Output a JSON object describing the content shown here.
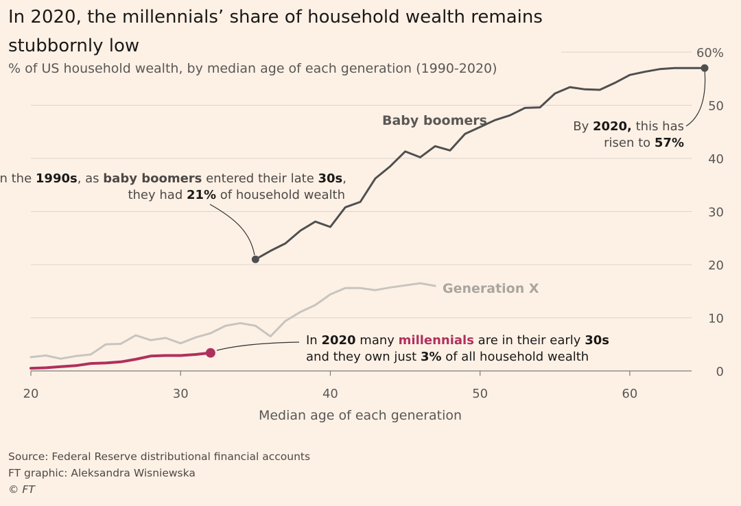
{
  "header": {
    "title": "In 2020, the millennials’ share of household wealth remains stubbornly low",
    "subtitle": "% of US household wealth, by median age of each generation (1990-2020)"
  },
  "chart_data": {
    "type": "line",
    "xlabel": "Median age of each generation",
    "ylabel": "",
    "xlim": [
      20,
      65
    ],
    "ylim": [
      0,
      60
    ],
    "x_ticks": [
      "20",
      "30",
      "40",
      "50",
      "60"
    ],
    "y_ticks": [
      "0",
      "10",
      "20",
      "30",
      "40",
      "50",
      "60%"
    ],
    "grid": "horizontal",
    "series": [
      {
        "name": "Baby boomers",
        "color": "#4f4f4f",
        "x": [
          35,
          36,
          37,
          38,
          39,
          40,
          41,
          42,
          43,
          44,
          45,
          46,
          47,
          48,
          49,
          50,
          51,
          52,
          53,
          54,
          55,
          56,
          57,
          58,
          59,
          60,
          61,
          62,
          63,
          64,
          65
        ],
        "y": [
          21,
          22.6,
          24,
          26.4,
          28.1,
          27.1,
          30.8,
          31.8,
          36.2,
          38.5,
          41.3,
          40.2,
          42.3,
          41.5,
          44.6,
          45.9,
          47.2,
          48.1,
          49.5,
          49.6,
          52.2,
          53.4,
          53,
          52.9,
          54.2,
          55.7,
          56.3,
          56.8,
          57,
          57,
          57
        ]
      },
      {
        "name": "Generation X",
        "color": "#c8c4be",
        "x": [
          20,
          21,
          22,
          23,
          24,
          25,
          26,
          27,
          28,
          29,
          30,
          31,
          32,
          33,
          34,
          35,
          36,
          37,
          38,
          39,
          40,
          41,
          42,
          43,
          44,
          45,
          46,
          47
        ],
        "y": [
          2.6,
          2.9,
          2.3,
          2.8,
          3.1,
          5,
          5.1,
          6.7,
          5.8,
          6.2,
          5.2,
          6.3,
          7.1,
          8.5,
          9,
          8.5,
          6.5,
          9.4,
          11.1,
          12.4,
          14.4,
          15.6,
          15.6,
          15.2,
          15.7,
          16.1,
          16.5,
          16
        ]
      },
      {
        "name": "",
        "color": "#b0305d",
        "x": [
          20,
          21,
          22,
          23,
          24,
          25,
          26,
          27,
          28,
          29,
          30,
          31,
          32
        ],
        "y": [
          0.5,
          0.6,
          0.8,
          1.0,
          1.4,
          1.5,
          1.7,
          2.2,
          2.8,
          2.9,
          2.9,
          3.1,
          3.4
        ]
      }
    ],
    "series_labels": {
      "boomers": "Baby boomers",
      "genx": "Generation X"
    },
    "annotations": {
      "boomers_1990": {
        "p1": "In the ",
        "b1": "1990s",
        "p2": ", as ",
        "b2": "baby boomers",
        "p3": " entered their late ",
        "b3": "30s",
        "p4": ",",
        "q1": "they had ",
        "c1": "21%",
        "q2": " of household wealth"
      },
      "boomers_2020": {
        "p1": "By ",
        "b1": "2020,",
        "p2": " this has",
        "q1": "risen to ",
        "c1": "57%"
      },
      "millennials_2020": {
        "p1": "In ",
        "b1": "2020",
        "p2": " many ",
        "m1": "millennials",
        "p3": " are in their early ",
        "b2": "30s",
        "q1": "and they own just ",
        "c1": "3%",
        "q2": " of all household wealth"
      }
    }
  },
  "footer": {
    "source": "Source: Federal Reserve distributional financial accounts",
    "credit": "FT graphic: Aleksandra Wisniewska",
    "copyright": "© FT"
  }
}
